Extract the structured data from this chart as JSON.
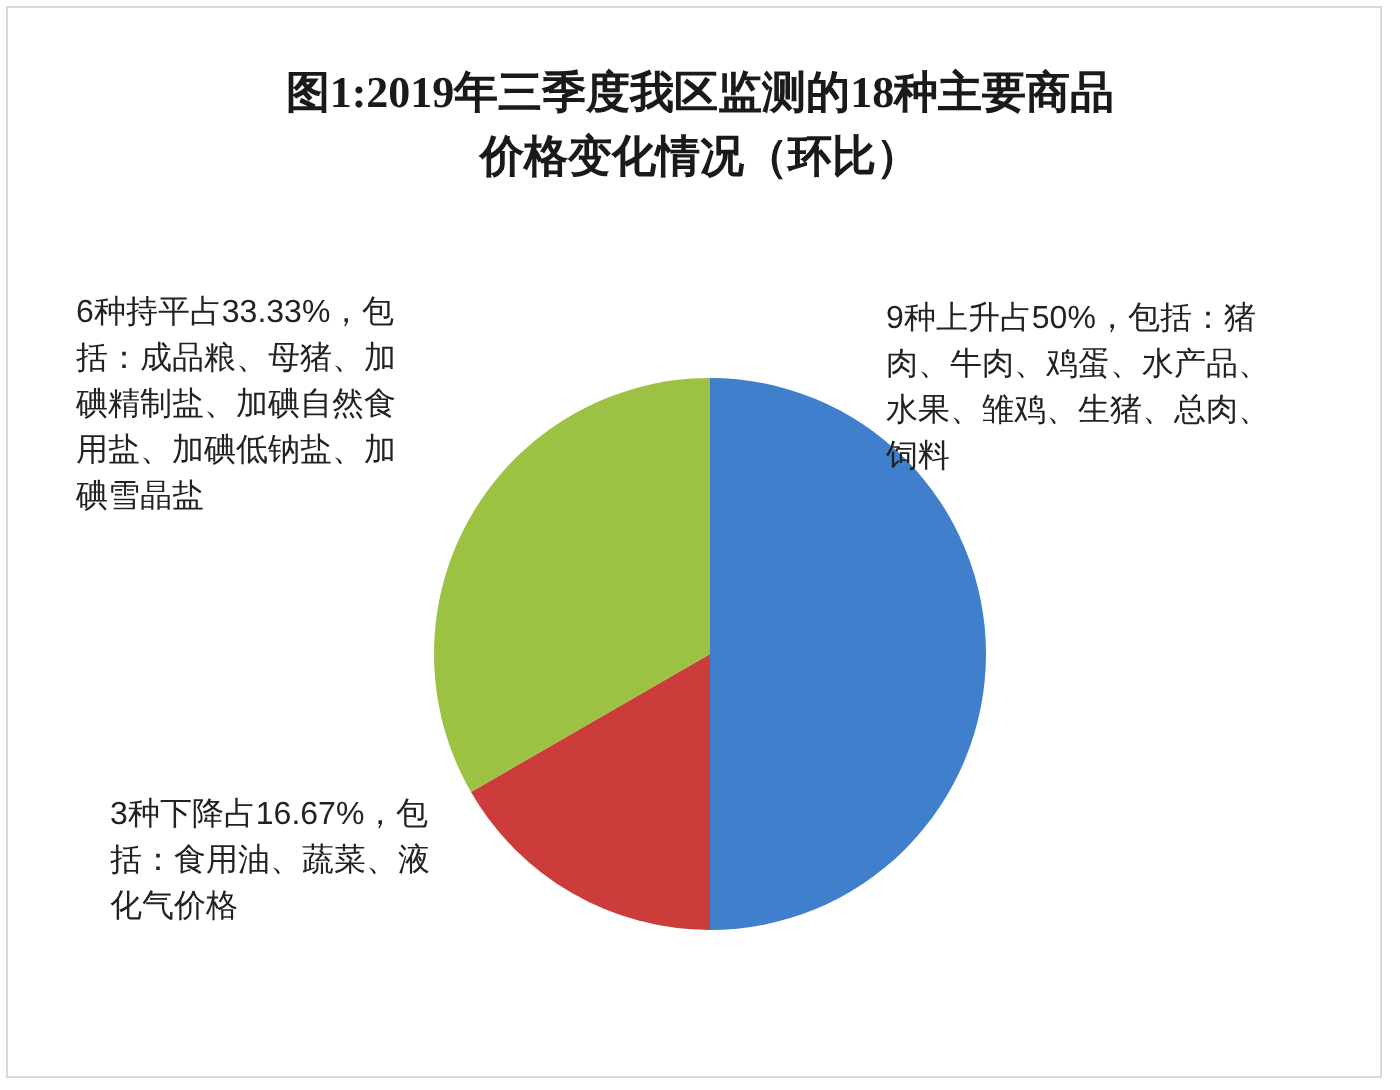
{
  "chart_data": {
    "type": "pie",
    "title": "图1:2019年三季度我区监测的18种主要商品价格变化情况（环比）",
    "categories": [
      "9种上升占50%，包括：猪肉、牛肉、鸡蛋、水产品、水果、雏鸡、生猪、总肉、饲料",
      "3种下降占16.67%，包括：食用油、蔬菜、液化气价格",
      "6种持平占33.33%，包括：成品粮、母猪、加碘精制盐、加碘自然食用盐、加碘低钠盐、加碘雪晶盐"
    ],
    "values": [
      50,
      16.67,
      33.33
    ],
    "colors": [
      "#3f7fcc",
      "#cc3c3a",
      "#9cc244"
    ]
  }
}
